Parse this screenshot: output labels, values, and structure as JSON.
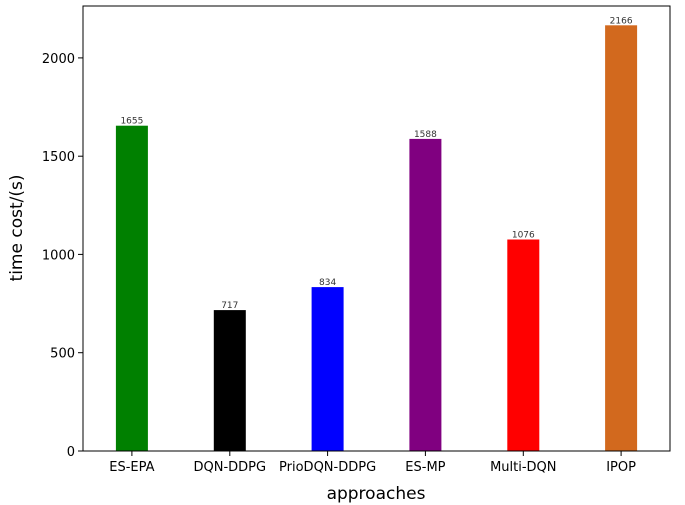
{
  "chart_data": {
    "type": "bar",
    "title": "",
    "xlabel": "approaches",
    "ylabel": "time cost/(s)",
    "categories": [
      "ES-EPA",
      "DQN-DDPG",
      "PrioDQN-DDPG",
      "ES-MP",
      "Multi-DQN",
      "IPOP"
    ],
    "values": [
      1655,
      717,
      834,
      1588,
      1076,
      2166
    ],
    "data_labels": [
      "1655",
      "717",
      "834",
      "1588",
      "1076",
      "2166"
    ],
    "bar_colors": [
      "#008000",
      "#000000",
      "#0000ff",
      "#800080",
      "#ff0000",
      "#d2691e"
    ],
    "ylim": [
      0,
      2264
    ],
    "yticks": [
      0,
      500,
      1000,
      1500,
      2000
    ],
    "grid": false,
    "legend": "none"
  }
}
